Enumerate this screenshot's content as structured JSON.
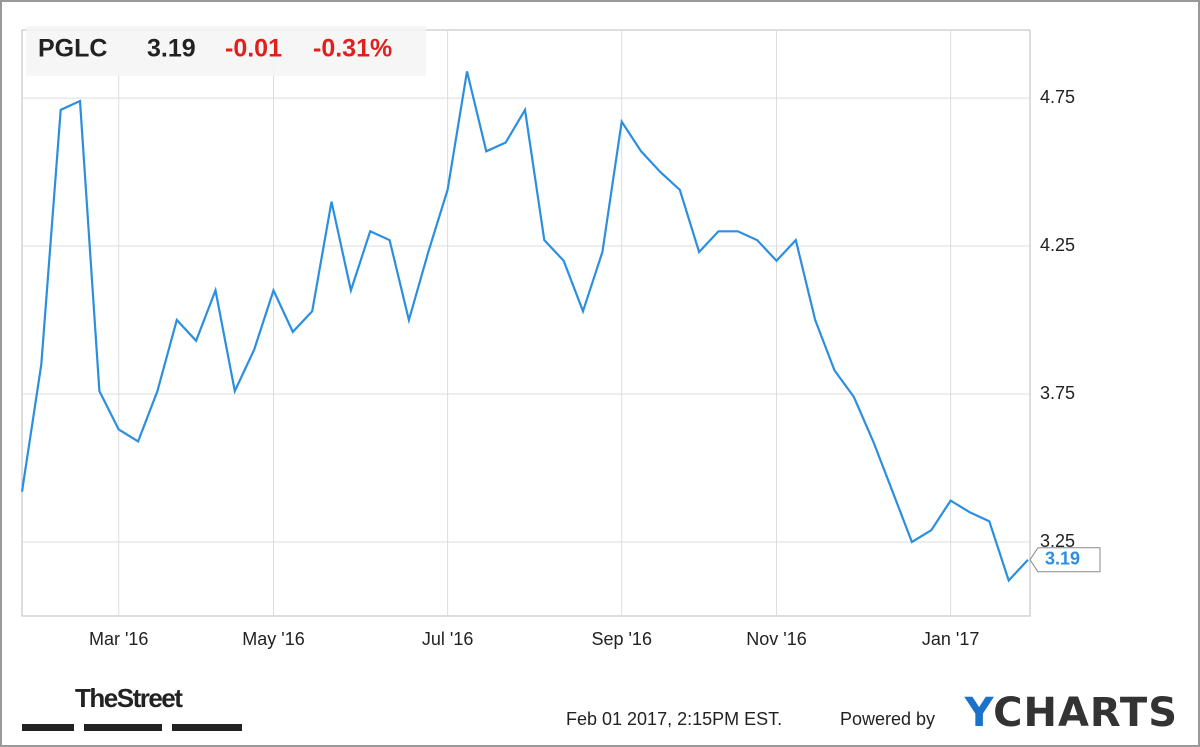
{
  "chart_data": {
    "type": "line",
    "ticker": "PGLC",
    "price": 3.19,
    "change": -0.01,
    "change_percent": "-0.31%",
    "categories": [
      null,
      null,
      null,
      null,
      null,
      "Mar '16",
      null,
      null,
      null,
      null,
      null,
      null,
      null,
      "May '16",
      null,
      null,
      null,
      null,
      null,
      null,
      null,
      null,
      "Jul '16",
      null,
      null,
      null,
      null,
      null,
      null,
      null,
      null,
      "Sep '16",
      null,
      null,
      null,
      null,
      null,
      null,
      null,
      "Nov '16",
      null,
      null,
      null,
      null,
      null,
      null,
      null,
      null,
      "Jan '17",
      null,
      null,
      null,
      null
    ],
    "values": [
      3.42,
      3.85,
      4.71,
      4.74,
      3.76,
      3.63,
      3.59,
      3.76,
      4.0,
      3.93,
      4.1,
      3.76,
      3.9,
      4.1,
      3.96,
      4.03,
      4.4,
      4.1,
      4.3,
      4.27,
      4.0,
      4.23,
      4.44,
      4.84,
      4.57,
      4.6,
      4.71,
      4.27,
      4.2,
      4.03,
      4.23,
      4.67,
      4.57,
      4.5,
      4.44,
      4.23,
      4.3,
      4.3,
      4.27,
      4.2,
      4.27,
      4.0,
      3.83,
      3.74,
      3.59,
      3.42,
      3.25,
      3.29,
      3.39,
      3.35,
      3.32,
      3.12,
      3.19
    ],
    "color": "#2b8fe0",
    "ylim": [
      3.0,
      4.98
    ],
    "yticks": [
      3.25,
      3.75,
      4.25,
      4.75
    ],
    "grid": true,
    "source_left": "TheStreet",
    "timestamp": "Feb 01 2017, 2:15PM EST.",
    "powered_by": "Powered by",
    "brand": "YCHARTS"
  }
}
